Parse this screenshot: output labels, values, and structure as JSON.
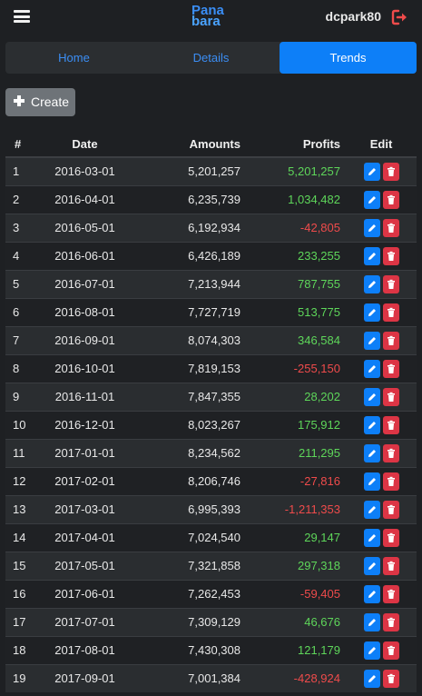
{
  "header": {
    "logo_line1": "Pana",
    "logo_line2": "bara",
    "username": "dcpark80",
    "colors": {
      "accent": "#0d7ff8",
      "logo": "#3a8ef6",
      "logout": "#ef4b4b"
    }
  },
  "tabs": [
    {
      "label": "Home",
      "active": false
    },
    {
      "label": "Details",
      "active": false
    },
    {
      "label": "Trends",
      "active": true
    }
  ],
  "create_label": "Create",
  "table": {
    "columns": [
      "#",
      "Date",
      "Amounts",
      "Profits",
      "Edit"
    ],
    "rows": [
      {
        "num": "1",
        "date": "2016-03-01",
        "amount": "5,201,257",
        "profit": "5,201,257",
        "sign": "pos"
      },
      {
        "num": "2",
        "date": "2016-04-01",
        "amount": "6,235,739",
        "profit": "1,034,482",
        "sign": "pos"
      },
      {
        "num": "3",
        "date": "2016-05-01",
        "amount": "6,192,934",
        "profit": "-42,805",
        "sign": "neg"
      },
      {
        "num": "4",
        "date": "2016-06-01",
        "amount": "6,426,189",
        "profit": "233,255",
        "sign": "pos"
      },
      {
        "num": "5",
        "date": "2016-07-01",
        "amount": "7,213,944",
        "profit": "787,755",
        "sign": "pos"
      },
      {
        "num": "6",
        "date": "2016-08-01",
        "amount": "7,727,719",
        "profit": "513,775",
        "sign": "pos"
      },
      {
        "num": "7",
        "date": "2016-09-01",
        "amount": "8,074,303",
        "profit": "346,584",
        "sign": "pos"
      },
      {
        "num": "8",
        "date": "2016-10-01",
        "amount": "7,819,153",
        "profit": "-255,150",
        "sign": "neg"
      },
      {
        "num": "9",
        "date": "2016-11-01",
        "amount": "7,847,355",
        "profit": "28,202",
        "sign": "pos"
      },
      {
        "num": "10",
        "date": "2016-12-01",
        "amount": "8,023,267",
        "profit": "175,912",
        "sign": "pos"
      },
      {
        "num": "11",
        "date": "2017-01-01",
        "amount": "8,234,562",
        "profit": "211,295",
        "sign": "pos"
      },
      {
        "num": "12",
        "date": "2017-02-01",
        "amount": "8,206,746",
        "profit": "-27,816",
        "sign": "neg"
      },
      {
        "num": "13",
        "date": "2017-03-01",
        "amount": "6,995,393",
        "profit": "-1,211,353",
        "sign": "neg"
      },
      {
        "num": "14",
        "date": "2017-04-01",
        "amount": "7,024,540",
        "profit": "29,147",
        "sign": "pos"
      },
      {
        "num": "15",
        "date": "2017-05-01",
        "amount": "7,321,858",
        "profit": "297,318",
        "sign": "pos"
      },
      {
        "num": "16",
        "date": "2017-06-01",
        "amount": "7,262,453",
        "profit": "-59,405",
        "sign": "neg"
      },
      {
        "num": "17",
        "date": "2017-07-01",
        "amount": "7,309,129",
        "profit": "46,676",
        "sign": "pos"
      },
      {
        "num": "18",
        "date": "2017-08-01",
        "amount": "7,430,308",
        "profit": "121,179",
        "sign": "pos"
      },
      {
        "num": "19",
        "date": "2017-09-01",
        "amount": "7,001,384",
        "profit": "-428,924",
        "sign": "neg"
      }
    ]
  }
}
